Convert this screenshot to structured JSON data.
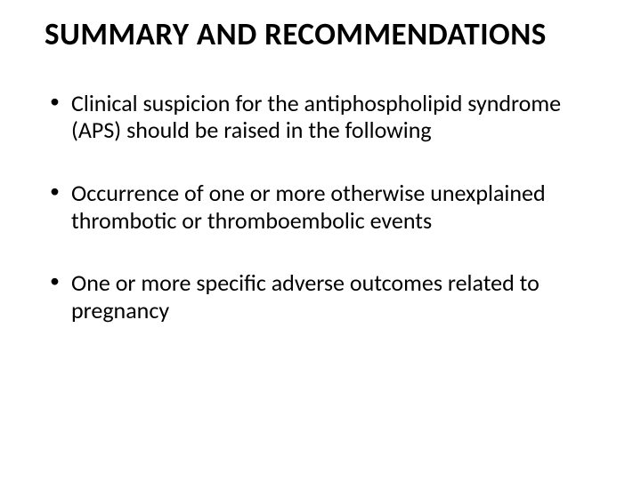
{
  "slide": {
    "title": "SUMMARY AND RECOMMENDATIONS",
    "bullets": [
      "Clinical suspicion for the antiphospholipid syndrome (APS) should be raised in the following",
      "Occurrence of one or more otherwise unexplained thrombotic or thromboembolic events",
      "One or more specific adverse outcomes  related to pregnancy"
    ],
    "title_fontsize": 35,
    "bullet_fontsize": 26,
    "text_color": "#000000",
    "background_color": "#ffffff",
    "font_family": "Calibri"
  }
}
